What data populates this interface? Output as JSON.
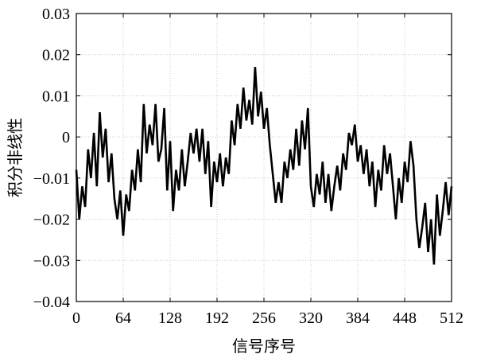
{
  "chart_data": {
    "type": "line",
    "title": "",
    "xlabel": "信号序号",
    "ylabel": "积分非线性",
    "xlim": [
      0,
      512
    ],
    "ylim": [
      -0.04,
      0.03
    ],
    "x_ticks": [
      0,
      64,
      128,
      192,
      256,
      320,
      384,
      448,
      512
    ],
    "x_tick_labels": [
      "0",
      "64",
      "128",
      "192",
      "256",
      "320",
      "384",
      "448",
      "512"
    ],
    "y_ticks": [
      -0.04,
      -0.03,
      -0.02,
      -0.01,
      0,
      0.01,
      0.02,
      0.03
    ],
    "y_tick_labels": [
      "−0.04",
      "−0.03",
      "−0.02",
      "−0.01",
      "0",
      "0.01",
      "0.02",
      "0.03"
    ],
    "grid": true,
    "series": [
      {
        "color": "#000000",
        "x": [
          0,
          4,
          8,
          12,
          16,
          20,
          24,
          28,
          32,
          36,
          40,
          44,
          48,
          52,
          56,
          60,
          64,
          68,
          72,
          76,
          80,
          84,
          88,
          92,
          96,
          100,
          104,
          108,
          112,
          116,
          120,
          124,
          128,
          132,
          136,
          140,
          144,
          148,
          152,
          156,
          160,
          164,
          168,
          172,
          176,
          180,
          184,
          188,
          192,
          196,
          200,
          204,
          208,
          212,
          216,
          220,
          224,
          228,
          232,
          236,
          240,
          244,
          248,
          252,
          256,
          260,
          264,
          268,
          272,
          276,
          280,
          284,
          288,
          292,
          296,
          300,
          304,
          308,
          312,
          316,
          320,
          324,
          328,
          332,
          336,
          340,
          344,
          348,
          352,
          356,
          360,
          364,
          368,
          372,
          376,
          380,
          384,
          388,
          392,
          396,
          400,
          404,
          408,
          412,
          416,
          420,
          424,
          428,
          432,
          436,
          440,
          444,
          448,
          452,
          456,
          460,
          464,
          468,
          472,
          476,
          480,
          484,
          488,
          492,
          496,
          500,
          504,
          508,
          512
        ],
        "y": [
          -0.008,
          -0.02,
          -0.012,
          -0.017,
          -0.003,
          -0.01,
          0.001,
          -0.012,
          0.006,
          -0.005,
          0.002,
          -0.011,
          -0.004,
          -0.015,
          -0.02,
          -0.013,
          -0.024,
          -0.014,
          -0.018,
          -0.008,
          -0.013,
          -0.003,
          -0.011,
          0.008,
          -0.004,
          0.003,
          -0.002,
          0.008,
          -0.006,
          -0.003,
          0.007,
          -0.013,
          -0.001,
          -0.018,
          -0.008,
          -0.013,
          -0.003,
          -0.012,
          -0.006,
          0.001,
          -0.004,
          0.002,
          -0.006,
          0.002,
          -0.009,
          -0.001,
          -0.017,
          -0.006,
          -0.011,
          -0.004,
          -0.012,
          -0.005,
          -0.009,
          0.004,
          -0.002,
          0.008,
          0.002,
          0.012,
          0.004,
          0.009,
          0.003,
          0.017,
          0.005,
          0.011,
          0.002,
          0.007,
          -0.002,
          -0.009,
          -0.016,
          -0.011,
          -0.016,
          -0.006,
          -0.01,
          -0.003,
          -0.008,
          0.002,
          -0.007,
          0.004,
          -0.003,
          0.007,
          -0.012,
          -0.017,
          -0.009,
          -0.014,
          -0.006,
          -0.016,
          -0.009,
          -0.018,
          -0.012,
          -0.007,
          -0.013,
          -0.004,
          -0.008,
          0.001,
          -0.002,
          0.003,
          -0.006,
          -0.002,
          -0.009,
          -0.003,
          -0.012,
          -0.006,
          -0.017,
          -0.008,
          -0.013,
          -0.002,
          -0.009,
          -0.004,
          -0.012,
          -0.02,
          -0.01,
          -0.016,
          -0.006,
          -0.011,
          -0.001,
          -0.007,
          -0.02,
          -0.027,
          -0.022,
          -0.016,
          -0.028,
          -0.02,
          -0.031,
          -0.014,
          -0.024,
          -0.018,
          -0.011,
          -0.019,
          -0.012
        ]
      }
    ]
  }
}
